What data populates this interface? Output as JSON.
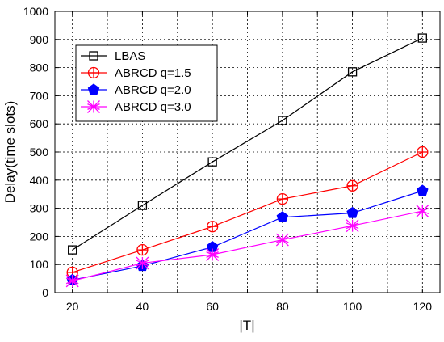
{
  "chart_data": {
    "type": "line",
    "title": "",
    "xlabel": "|T|",
    "ylabel": "Delay(time slots)",
    "xlim": [
      15,
      125
    ],
    "ylim": [
      0,
      1000
    ],
    "x_ticks": [
      20,
      40,
      60,
      80,
      100,
      120
    ],
    "y_ticks": [
      0,
      100,
      200,
      300,
      400,
      500,
      600,
      700,
      800,
      900,
      1000
    ],
    "grid": true,
    "legend_position": "top-left",
    "x": [
      20,
      40,
      60,
      80,
      100,
      120
    ],
    "series": [
      {
        "name": "LBAS",
        "color": "#000000",
        "marker": "square",
        "values": [
          152,
          310,
          465,
          612,
          785,
          905
        ]
      },
      {
        "name": "ABRCD q=1.5",
        "color": "#ff0000",
        "marker": "circle-plus",
        "values": [
          72,
          152,
          235,
          333,
          380,
          500
        ]
      },
      {
        "name": "ABRCD q=2.0",
        "color": "#0000ff",
        "marker": "pentagon",
        "values": [
          45,
          95,
          162,
          268,
          283,
          362
        ]
      },
      {
        "name": "ABRCD q=3.0",
        "color": "#ff00ff",
        "marker": "star-x",
        "values": [
          42,
          105,
          135,
          188,
          238,
          290
        ]
      }
    ]
  }
}
